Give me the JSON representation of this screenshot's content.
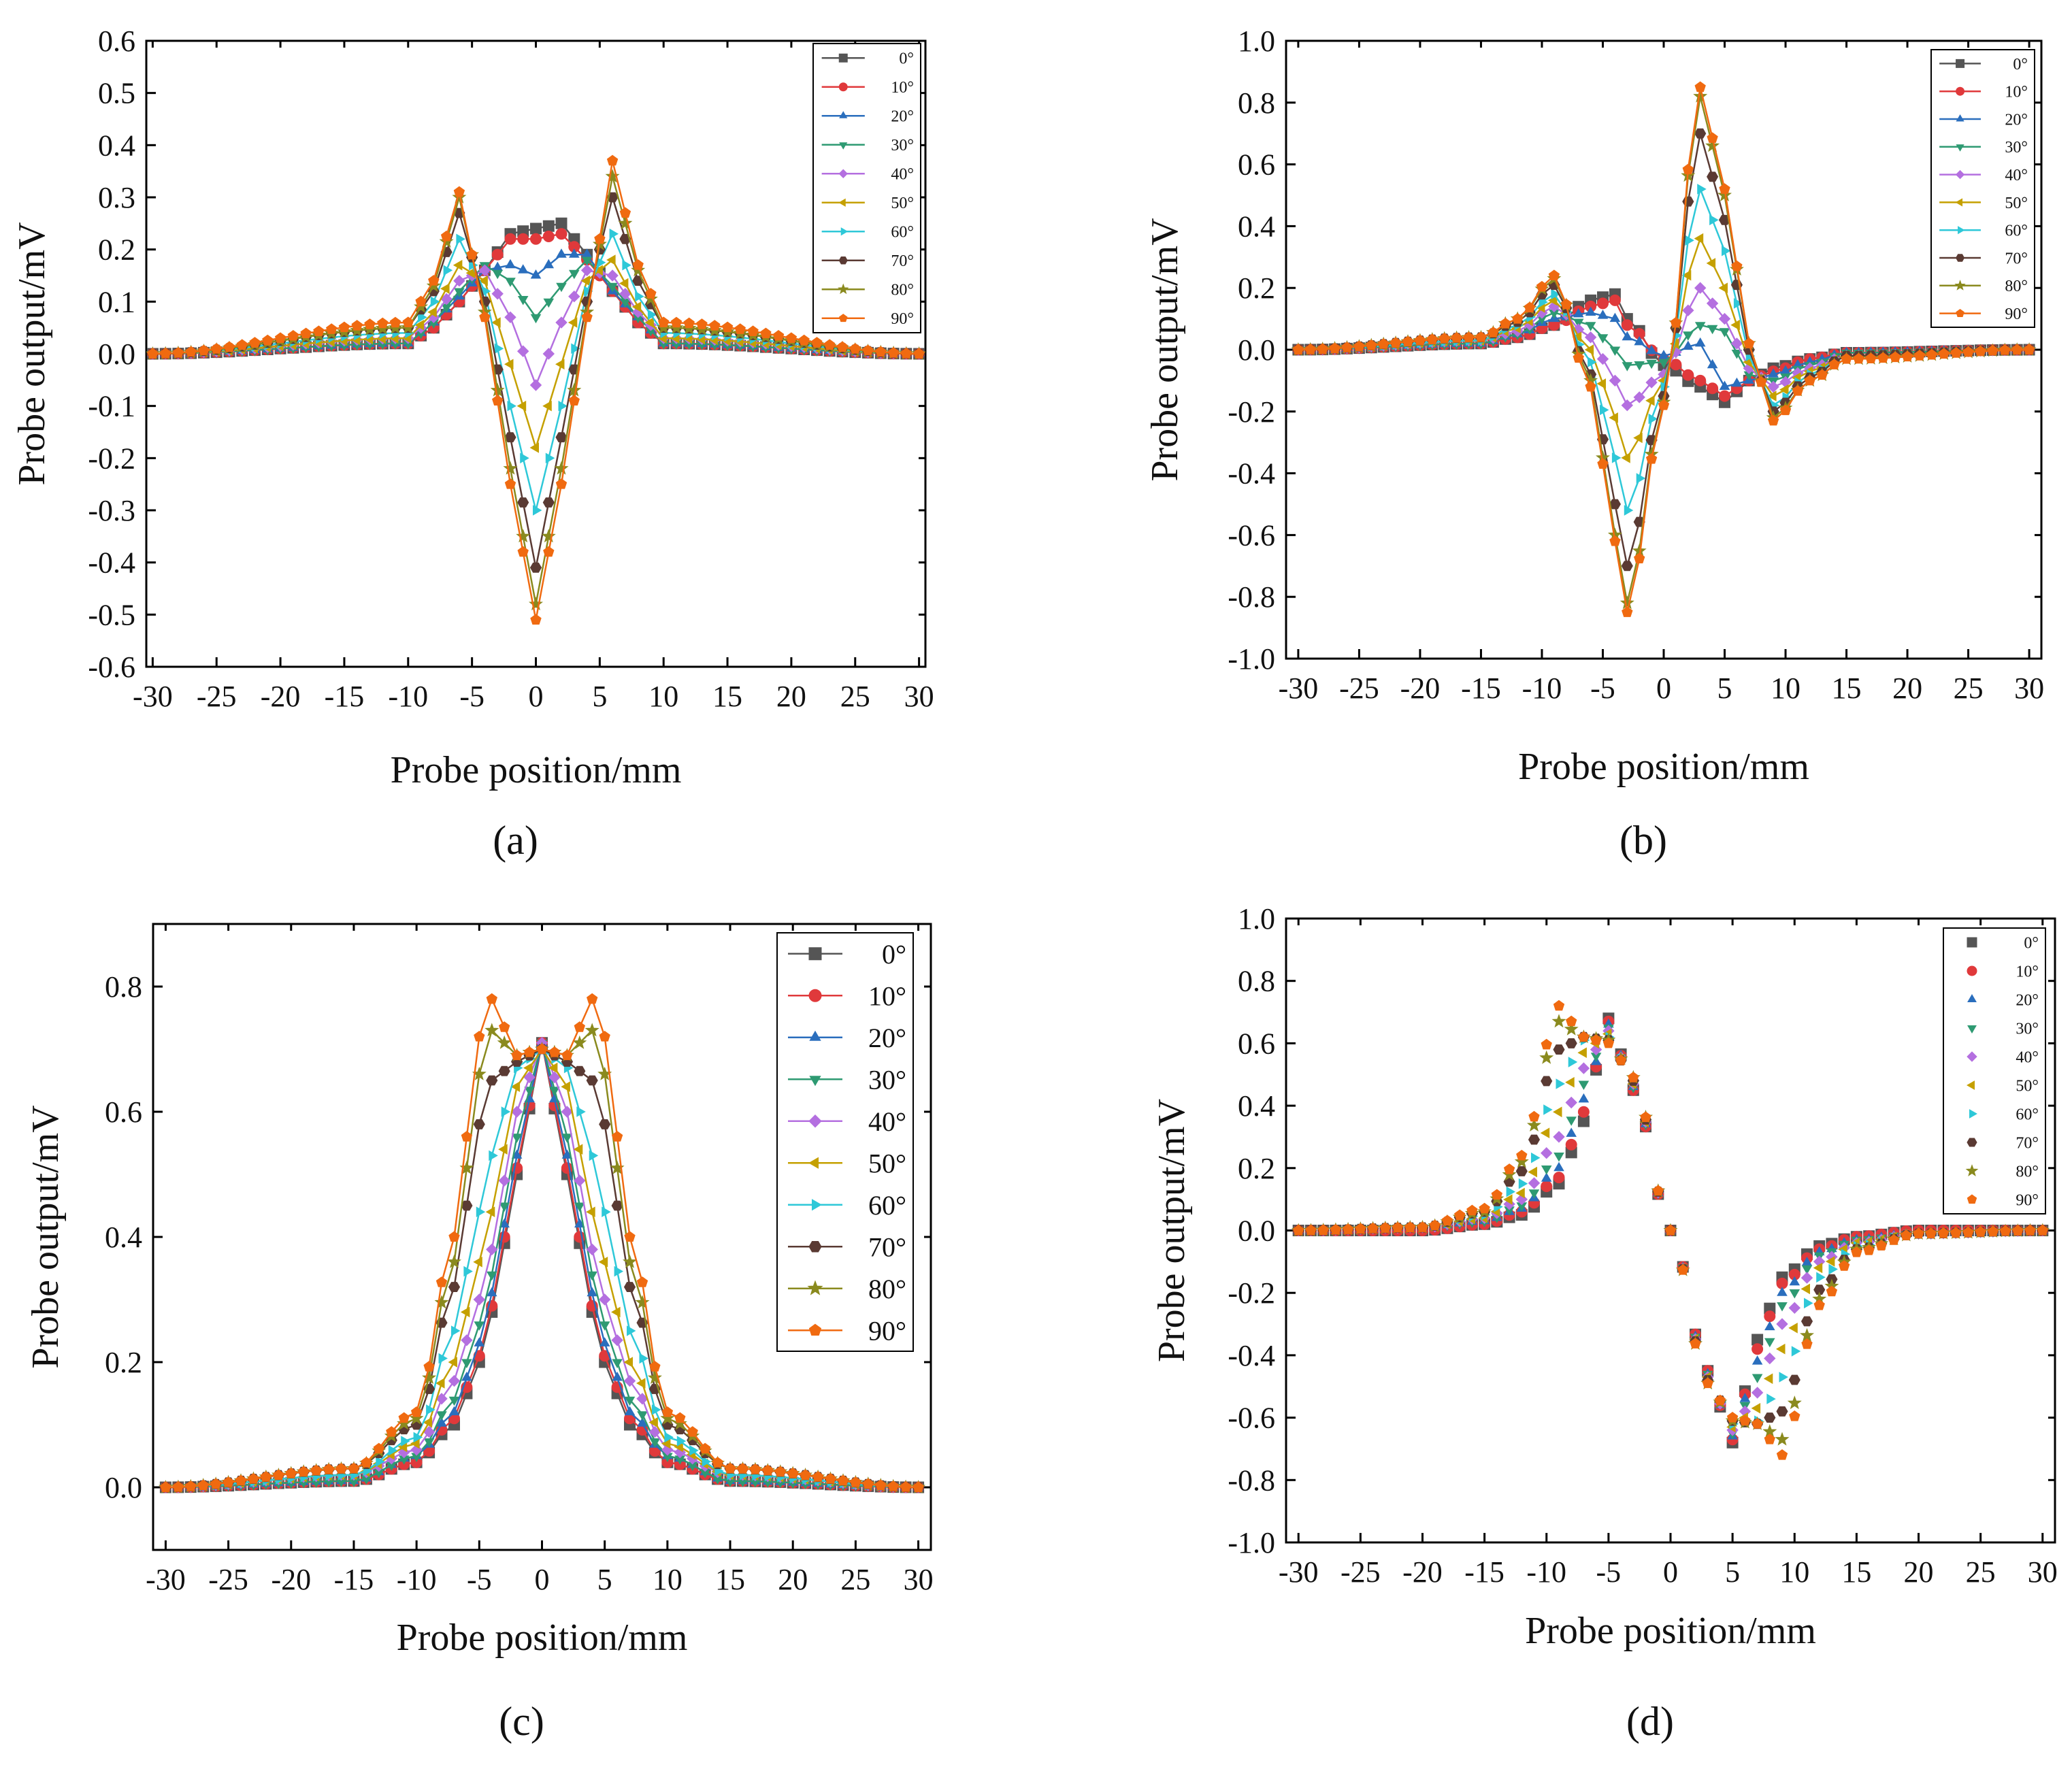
{
  "figure": {
    "panel_labels": [
      "(a)",
      "(b)",
      "(c)",
      "(d)"
    ]
  },
  "series_style": {
    "angles": [
      "0°",
      "10°",
      "20°",
      "30°",
      "40°",
      "50°",
      "60°",
      "70°",
      "80°",
      "90°"
    ],
    "colors": [
      "#555555",
      "#e0393b",
      "#2a6ebd",
      "#2e9a72",
      "#b46fe0",
      "#c5a000",
      "#2ec8d8",
      "#5a3a33",
      "#8a8a1e",
      "#f06a10"
    ],
    "markers": [
      "square",
      "circle",
      "triangle-up",
      "triangle-down",
      "diamond",
      "triangle-left",
      "triangle-right",
      "hexagon",
      "star",
      "pentagon"
    ]
  },
  "chart_data": [
    {
      "type": "line",
      "id": "a",
      "title": "",
      "xlabel": "Probe position/mm",
      "ylabel": "Probe output/mV",
      "xlim": [
        -30.5,
        30.5
      ],
      "ylim": [
        -0.6,
        0.6
      ],
      "xticks": [
        -30,
        -25,
        -20,
        -15,
        -10,
        -5,
        0,
        5,
        10,
        15,
        20,
        25,
        30
      ],
      "yticks": [
        -0.6,
        -0.5,
        -0.4,
        -0.3,
        -0.2,
        -0.1,
        0.0,
        0.1,
        0.2,
        0.3,
        0.4,
        0.5,
        0.6
      ],
      "ytick_labels": [
        "-0.6",
        "-0.5",
        "-0.4",
        "-0.3",
        "-0.2",
        "-0.1",
        "0.0",
        "0.1",
        "0.2",
        "0.3",
        "0.4",
        "0.5",
        "0.6"
      ],
      "legend": {
        "position": "top-right",
        "labels": [
          "0°",
          "10°",
          "20°",
          "30°",
          "40°",
          "50°",
          "60°",
          "70°",
          "80°",
          "90°"
        ]
      },
      "x": [
        -30,
        -10,
        -8,
        -6,
        -4,
        -2,
        0,
        2,
        4,
        6,
        8,
        10,
        30
      ],
      "series": [
        {
          "name": "0°",
          "values": [
            0,
            0.02,
            0.05,
            0.1,
            0.16,
            0.23,
            0.24,
            0.25,
            0.19,
            0.12,
            0.06,
            0.02,
            0
          ]
        },
        {
          "name": "10°",
          "values": [
            0,
            0.02,
            0.05,
            0.1,
            0.16,
            0.22,
            0.22,
            0.23,
            0.18,
            0.12,
            0.06,
            0.02,
            0
          ]
        },
        {
          "name": "20°",
          "values": [
            0,
            0.02,
            0.06,
            0.11,
            0.16,
            0.17,
            0.15,
            0.19,
            0.19,
            0.12,
            0.07,
            0.02,
            0
          ]
        },
        {
          "name": "30°",
          "values": [
            0,
            0.02,
            0.06,
            0.12,
            0.17,
            0.14,
            0.07,
            0.13,
            0.18,
            0.13,
            0.07,
            0.02,
            0
          ]
        },
        {
          "name": "40°",
          "values": [
            0,
            0.03,
            0.07,
            0.14,
            0.16,
            0.07,
            -0.06,
            0.06,
            0.16,
            0.15,
            0.08,
            0.03,
            0
          ]
        },
        {
          "name": "50°",
          "values": [
            0,
            0.03,
            0.08,
            0.17,
            0.14,
            -0.02,
            -0.18,
            -0.02,
            0.14,
            0.18,
            0.09,
            0.03,
            0
          ]
        },
        {
          "name": "60°",
          "values": [
            0,
            0.04,
            0.1,
            0.22,
            0.12,
            -0.1,
            -0.3,
            -0.1,
            0.12,
            0.23,
            0.11,
            0.04,
            0
          ]
        },
        {
          "name": "70°",
          "values": [
            0,
            0.05,
            0.12,
            0.27,
            0.1,
            -0.16,
            -0.41,
            -0.16,
            0.1,
            0.3,
            0.14,
            0.05,
            0
          ]
        },
        {
          "name": "80°",
          "values": [
            0,
            0.05,
            0.13,
            0.3,
            0.08,
            -0.22,
            -0.48,
            -0.22,
            0.08,
            0.34,
            0.16,
            0.05,
            0
          ]
        },
        {
          "name": "90°",
          "values": [
            0,
            0.06,
            0.14,
            0.31,
            0.07,
            -0.25,
            -0.51,
            -0.25,
            0.07,
            0.37,
            0.17,
            0.06,
            0
          ]
        }
      ]
    },
    {
      "type": "line",
      "id": "b",
      "title": "",
      "xlabel": "Probe position/mm",
      "ylabel": "Probe output/mV",
      "xlim": [
        -31,
        31
      ],
      "ylim": [
        -1.0,
        1.0
      ],
      "xticks": [
        -30,
        -25,
        -20,
        -15,
        -10,
        -5,
        0,
        5,
        10,
        15,
        20,
        25,
        30
      ],
      "yticks": [
        -1.0,
        -0.8,
        -0.6,
        -0.4,
        -0.2,
        0.0,
        0.2,
        0.4,
        0.6,
        0.8,
        1.0
      ],
      "ytick_labels": [
        "-1.0",
        "-0.8",
        "-0.6",
        "-0.4",
        "-0.2",
        "0.0",
        "0.2",
        "0.4",
        "0.6",
        "0.8",
        "1.0"
      ],
      "legend": {
        "position": "top-right",
        "labels": [
          "0°",
          "10°",
          "20°",
          "30°",
          "40°",
          "50°",
          "60°",
          "70°",
          "80°",
          "90°"
        ]
      },
      "x": [
        -30,
        -15,
        -12,
        -9,
        -6,
        -4,
        -3,
        0,
        3,
        5,
        7,
        9,
        12,
        15,
        30
      ],
      "series": [
        {
          "name": "0°",
          "values": [
            0,
            0.02,
            0.04,
            0.08,
            0.16,
            0.18,
            0.1,
            -0.05,
            -0.12,
            -0.17,
            -0.1,
            -0.06,
            -0.03,
            -0.01,
            0
          ]
        },
        {
          "name": "10°",
          "values": [
            0,
            0.02,
            0.04,
            0.08,
            0.14,
            0.16,
            0.08,
            -0.03,
            -0.1,
            -0.15,
            -0.1,
            -0.07,
            -0.03,
            -0.01,
            0
          ]
        },
        {
          "name": "20°",
          "values": [
            0,
            0.02,
            0.05,
            0.1,
            0.12,
            0.1,
            0.04,
            -0.02,
            0.02,
            -0.12,
            -0.1,
            -0.08,
            -0.04,
            -0.01,
            0
          ]
        },
        {
          "name": "30°",
          "values": [
            0,
            0.02,
            0.05,
            0.12,
            0.08,
            0.0,
            -0.05,
            -0.04,
            0.08,
            0.06,
            -0.08,
            -0.1,
            -0.05,
            -0.01,
            0
          ]
        },
        {
          "name": "40°",
          "values": [
            0,
            0.03,
            0.06,
            0.14,
            0.04,
            -0.1,
            -0.18,
            -0.08,
            0.2,
            0.1,
            -0.06,
            -0.12,
            -0.06,
            -0.02,
            0
          ]
        },
        {
          "name": "50°",
          "values": [
            0,
            0.03,
            0.07,
            0.16,
            0.0,
            -0.22,
            -0.35,
            -0.1,
            0.36,
            0.2,
            -0.04,
            -0.15,
            -0.07,
            -0.02,
            0
          ]
        },
        {
          "name": "60°",
          "values": [
            0,
            0.03,
            0.08,
            0.18,
            -0.04,
            -0.35,
            -0.52,
            -0.12,
            0.52,
            0.32,
            -0.02,
            -0.18,
            -0.08,
            -0.02,
            0
          ]
        },
        {
          "name": "70°",
          "values": [
            0,
            0.04,
            0.09,
            0.21,
            -0.08,
            -0.5,
            -0.7,
            -0.15,
            0.7,
            0.42,
            0.0,
            -0.2,
            -0.09,
            -0.02,
            0
          ]
        },
        {
          "name": "80°",
          "values": [
            0,
            0.04,
            0.1,
            0.23,
            -0.1,
            -0.6,
            -0.82,
            -0.17,
            0.82,
            0.5,
            0.02,
            -0.22,
            -0.1,
            -0.03,
            0
          ]
        },
        {
          "name": "90°",
          "values": [
            0,
            0.04,
            0.1,
            0.24,
            -0.12,
            -0.62,
            -0.85,
            -0.18,
            0.85,
            0.52,
            0.02,
            -0.23,
            -0.1,
            -0.03,
            0
          ]
        }
      ]
    },
    {
      "type": "line",
      "id": "c",
      "title": "",
      "xlabel": "Probe position/mm",
      "ylabel": "Probe output/mV",
      "xlim": [
        -31,
        31
      ],
      "ylim": [
        -0.1,
        0.9
      ],
      "xticks": [
        -30,
        -25,
        -20,
        -15,
        -10,
        -5,
        0,
        5,
        10,
        15,
        20,
        25,
        30
      ],
      "yticks": [
        0.0,
        0.2,
        0.4,
        0.6,
        0.8
      ],
      "ytick_labels": [
        "0.0",
        "0.2",
        "0.4",
        "0.6",
        "0.8"
      ],
      "legend": {
        "position": "top-right",
        "labels": [
          "0°",
          "10°",
          "20°",
          "30°",
          "40°",
          "50°",
          "60°",
          "70°",
          "80°",
          "90°"
        ]
      },
      "x": [
        -30,
        -15,
        -10,
        -7,
        -5,
        -4,
        -2,
        0,
        2,
        4,
        5,
        7,
        10,
        15,
        30
      ],
      "series": [
        {
          "name": "0°",
          "values": [
            0,
            0.01,
            0.04,
            0.1,
            0.2,
            0.28,
            0.5,
            0.71,
            0.5,
            0.28,
            0.2,
            0.1,
            0.04,
            0.01,
            0
          ]
        },
        {
          "name": "10°",
          "values": [
            0,
            0.01,
            0.04,
            0.11,
            0.21,
            0.29,
            0.51,
            0.71,
            0.51,
            0.29,
            0.21,
            0.11,
            0.04,
            0.01,
            0
          ]
        },
        {
          "name": "20°",
          "values": [
            0,
            0.01,
            0.05,
            0.12,
            0.23,
            0.31,
            0.53,
            0.71,
            0.53,
            0.31,
            0.23,
            0.12,
            0.05,
            0.01,
            0
          ]
        },
        {
          "name": "30°",
          "values": [
            0,
            0.01,
            0.05,
            0.14,
            0.26,
            0.34,
            0.56,
            0.71,
            0.56,
            0.34,
            0.26,
            0.14,
            0.05,
            0.01,
            0
          ]
        },
        {
          "name": "40°",
          "values": [
            0,
            0.02,
            0.06,
            0.17,
            0.3,
            0.38,
            0.6,
            0.71,
            0.6,
            0.38,
            0.3,
            0.17,
            0.06,
            0.02,
            0
          ]
        },
        {
          "name": "50°",
          "values": [
            0,
            0.02,
            0.07,
            0.2,
            0.36,
            0.44,
            0.64,
            0.7,
            0.64,
            0.44,
            0.36,
            0.2,
            0.07,
            0.02,
            0
          ]
        },
        {
          "name": "60°",
          "values": [
            0,
            0.02,
            0.08,
            0.25,
            0.44,
            0.53,
            0.67,
            0.7,
            0.67,
            0.53,
            0.44,
            0.25,
            0.08,
            0.02,
            0
          ]
        },
        {
          "name": "70°",
          "values": [
            0,
            0.03,
            0.1,
            0.32,
            0.58,
            0.65,
            0.68,
            0.7,
            0.68,
            0.65,
            0.58,
            0.32,
            0.1,
            0.03,
            0
          ]
        },
        {
          "name": "80°",
          "values": [
            0,
            0.03,
            0.11,
            0.36,
            0.66,
            0.73,
            0.69,
            0.7,
            0.69,
            0.73,
            0.66,
            0.36,
            0.11,
            0.03,
            0
          ]
        },
        {
          "name": "90°",
          "values": [
            0,
            0.03,
            0.12,
            0.4,
            0.72,
            0.78,
            0.69,
            0.7,
            0.69,
            0.78,
            0.72,
            0.4,
            0.12,
            0.03,
            0
          ]
        }
      ]
    },
    {
      "type": "scatter",
      "id": "d",
      "title": "",
      "xlabel": "Probe position/mm",
      "ylabel": "Probe output/mV",
      "xlim": [
        -31,
        31
      ],
      "ylim": [
        -1.0,
        1.0
      ],
      "xticks": [
        -30,
        -25,
        -20,
        -15,
        -10,
        -5,
        0,
        5,
        10,
        15,
        20,
        25,
        30
      ],
      "yticks": [
        -1.0,
        -0.8,
        -0.6,
        -0.4,
        -0.2,
        0.0,
        0.2,
        0.4,
        0.6,
        0.8,
        1.0
      ],
      "ytick_labels": [
        "-1.0",
        "-0.8",
        "-0.6",
        "-0.4",
        "-0.2",
        "0.0",
        "0.2",
        "0.4",
        "0.6",
        "0.8",
        "1.0"
      ],
      "legend": {
        "position": "top-right",
        "labels": [
          "0°",
          "10°",
          "20°",
          "30°",
          "40°",
          "50°",
          "60°",
          "70°",
          "80°",
          "90°"
        ]
      },
      "x": [
        -30,
        -20,
        -15,
        -12,
        -9,
        -7,
        -5,
        -3,
        0,
        3,
        5,
        7,
        9,
        12,
        15,
        20,
        30
      ],
      "series": [
        {
          "name": "0°",
          "values": [
            0,
            0.0,
            0.02,
            0.05,
            0.15,
            0.35,
            0.68,
            0.45,
            0.0,
            -0.45,
            -0.68,
            -0.35,
            -0.15,
            -0.05,
            -0.02,
            0.0,
            0
          ]
        },
        {
          "name": "10°",
          "values": [
            0,
            0.0,
            0.02,
            0.06,
            0.17,
            0.38,
            0.67,
            0.45,
            0.0,
            -0.45,
            -0.67,
            -0.38,
            -0.17,
            -0.06,
            -0.02,
            0.0,
            0
          ]
        },
        {
          "name": "20°",
          "values": [
            0,
            0.01,
            0.03,
            0.07,
            0.2,
            0.42,
            0.66,
            0.46,
            0.0,
            -0.46,
            -0.66,
            -0.42,
            -0.2,
            -0.07,
            -0.03,
            -0.01,
            0
          ]
        },
        {
          "name": "30°",
          "values": [
            0,
            0.01,
            0.03,
            0.08,
            0.24,
            0.47,
            0.65,
            0.46,
            0.0,
            -0.46,
            -0.65,
            -0.47,
            -0.24,
            -0.08,
            -0.03,
            -0.01,
            0
          ]
        },
        {
          "name": "40°",
          "values": [
            0,
            0.01,
            0.04,
            0.1,
            0.3,
            0.52,
            0.64,
            0.47,
            0.0,
            -0.47,
            -0.64,
            -0.52,
            -0.3,
            -0.1,
            -0.04,
            -0.01,
            0
          ]
        },
        {
          "name": "50°",
          "values": [
            0,
            0.01,
            0.04,
            0.12,
            0.38,
            0.57,
            0.63,
            0.47,
            0.0,
            -0.47,
            -0.63,
            -0.57,
            -0.38,
            -0.12,
            -0.04,
            -0.01,
            0
          ]
        },
        {
          "name": "60°",
          "values": [
            0,
            0.01,
            0.05,
            0.15,
            0.47,
            0.61,
            0.62,
            0.48,
            0.0,
            -0.48,
            -0.62,
            -0.61,
            -0.47,
            -0.15,
            -0.05,
            -0.01,
            0
          ]
        },
        {
          "name": "70°",
          "values": [
            0,
            0.01,
            0.06,
            0.19,
            0.58,
            0.62,
            0.61,
            0.48,
            0.0,
            -0.48,
            -0.61,
            -0.62,
            -0.58,
            -0.19,
            -0.06,
            -0.01,
            0
          ]
        },
        {
          "name": "80°",
          "values": [
            0,
            0.01,
            0.06,
            0.22,
            0.67,
            0.62,
            0.61,
            0.49,
            0.0,
            -0.49,
            -0.61,
            -0.62,
            -0.67,
            -0.22,
            -0.06,
            -0.01,
            0
          ]
        },
        {
          "name": "90°",
          "values": [
            0,
            0.01,
            0.07,
            0.24,
            0.72,
            0.62,
            0.6,
            0.49,
            0.0,
            -0.49,
            -0.6,
            -0.62,
            -0.72,
            -0.24,
            -0.07,
            -0.01,
            0
          ]
        }
      ]
    }
  ]
}
